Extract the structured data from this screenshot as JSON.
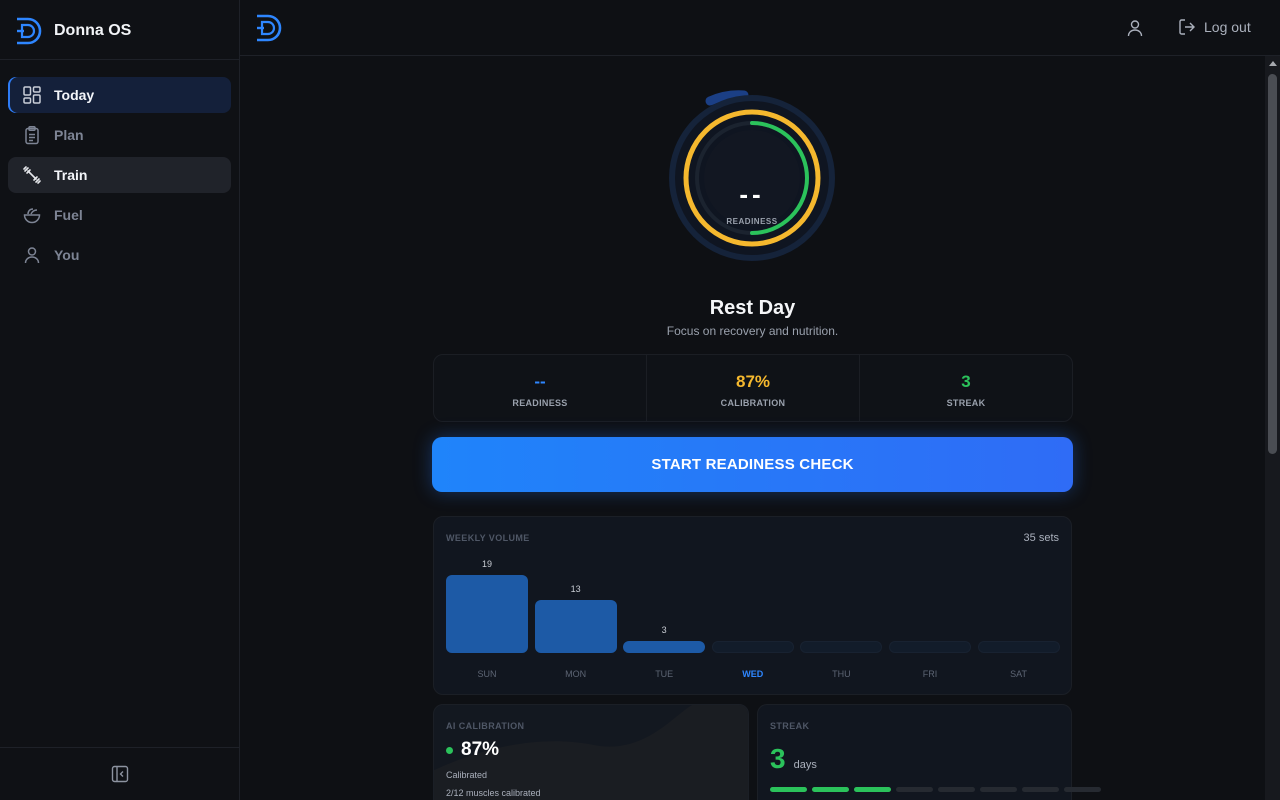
{
  "app": {
    "name": "Donna OS"
  },
  "sidebar": {
    "items": [
      {
        "label": "Today",
        "icon": "dashboard-icon",
        "state": "active"
      },
      {
        "label": "Plan",
        "icon": "clipboard-icon",
        "state": "default"
      },
      {
        "label": "Train",
        "icon": "dumbbell-icon",
        "state": "hover"
      },
      {
        "label": "Fuel",
        "icon": "bowl-icon",
        "state": "default"
      },
      {
        "label": "You",
        "icon": "user-icon",
        "state": "default"
      }
    ],
    "collapse_icon": "sidebar-collapse-icon"
  },
  "topbar": {
    "logout_label": "Log out"
  },
  "readiness_ring": {
    "value": "--",
    "label": "READINESS"
  },
  "day": {
    "title": "Rest Day",
    "subtitle": "Focus on recovery and nutrition."
  },
  "stats": [
    {
      "value": "--",
      "label": "READINESS",
      "color": "#2e86ff"
    },
    {
      "value": "87%",
      "label": "CALIBRATION",
      "color": "#f5b82e"
    },
    {
      "value": "3",
      "label": "STREAK",
      "color": "#2bc25b"
    }
  ],
  "cta": {
    "label": "START READINESS CHECK"
  },
  "weekly_volume": {
    "title": "WEEKLY VOLUME",
    "total": "35 sets",
    "today": "WED",
    "days": [
      {
        "day": "SUN",
        "sets": 19,
        "label": "19"
      },
      {
        "day": "MON",
        "sets": 13,
        "label": "13"
      },
      {
        "day": "TUE",
        "sets": 3,
        "label": "3"
      },
      {
        "day": "WED",
        "sets": 0,
        "label": ""
      },
      {
        "day": "THU",
        "sets": 0,
        "label": ""
      },
      {
        "day": "FRI",
        "sets": 0,
        "label": ""
      },
      {
        "day": "SAT",
        "sets": 0,
        "label": ""
      }
    ]
  },
  "ai_calibration": {
    "title": "AI CALIBRATION",
    "value": "87%",
    "status": "Calibrated",
    "muscles": "2/12 muscles calibrated"
  },
  "streak": {
    "title": "STREAK",
    "value": "3",
    "unit": "days",
    "segments_total": 8,
    "segments_on": 3
  },
  "colors": {
    "accent": "#2e86ff",
    "yellow": "#f5b82e",
    "green": "#2bc25b",
    "bg": "#0e1014"
  }
}
